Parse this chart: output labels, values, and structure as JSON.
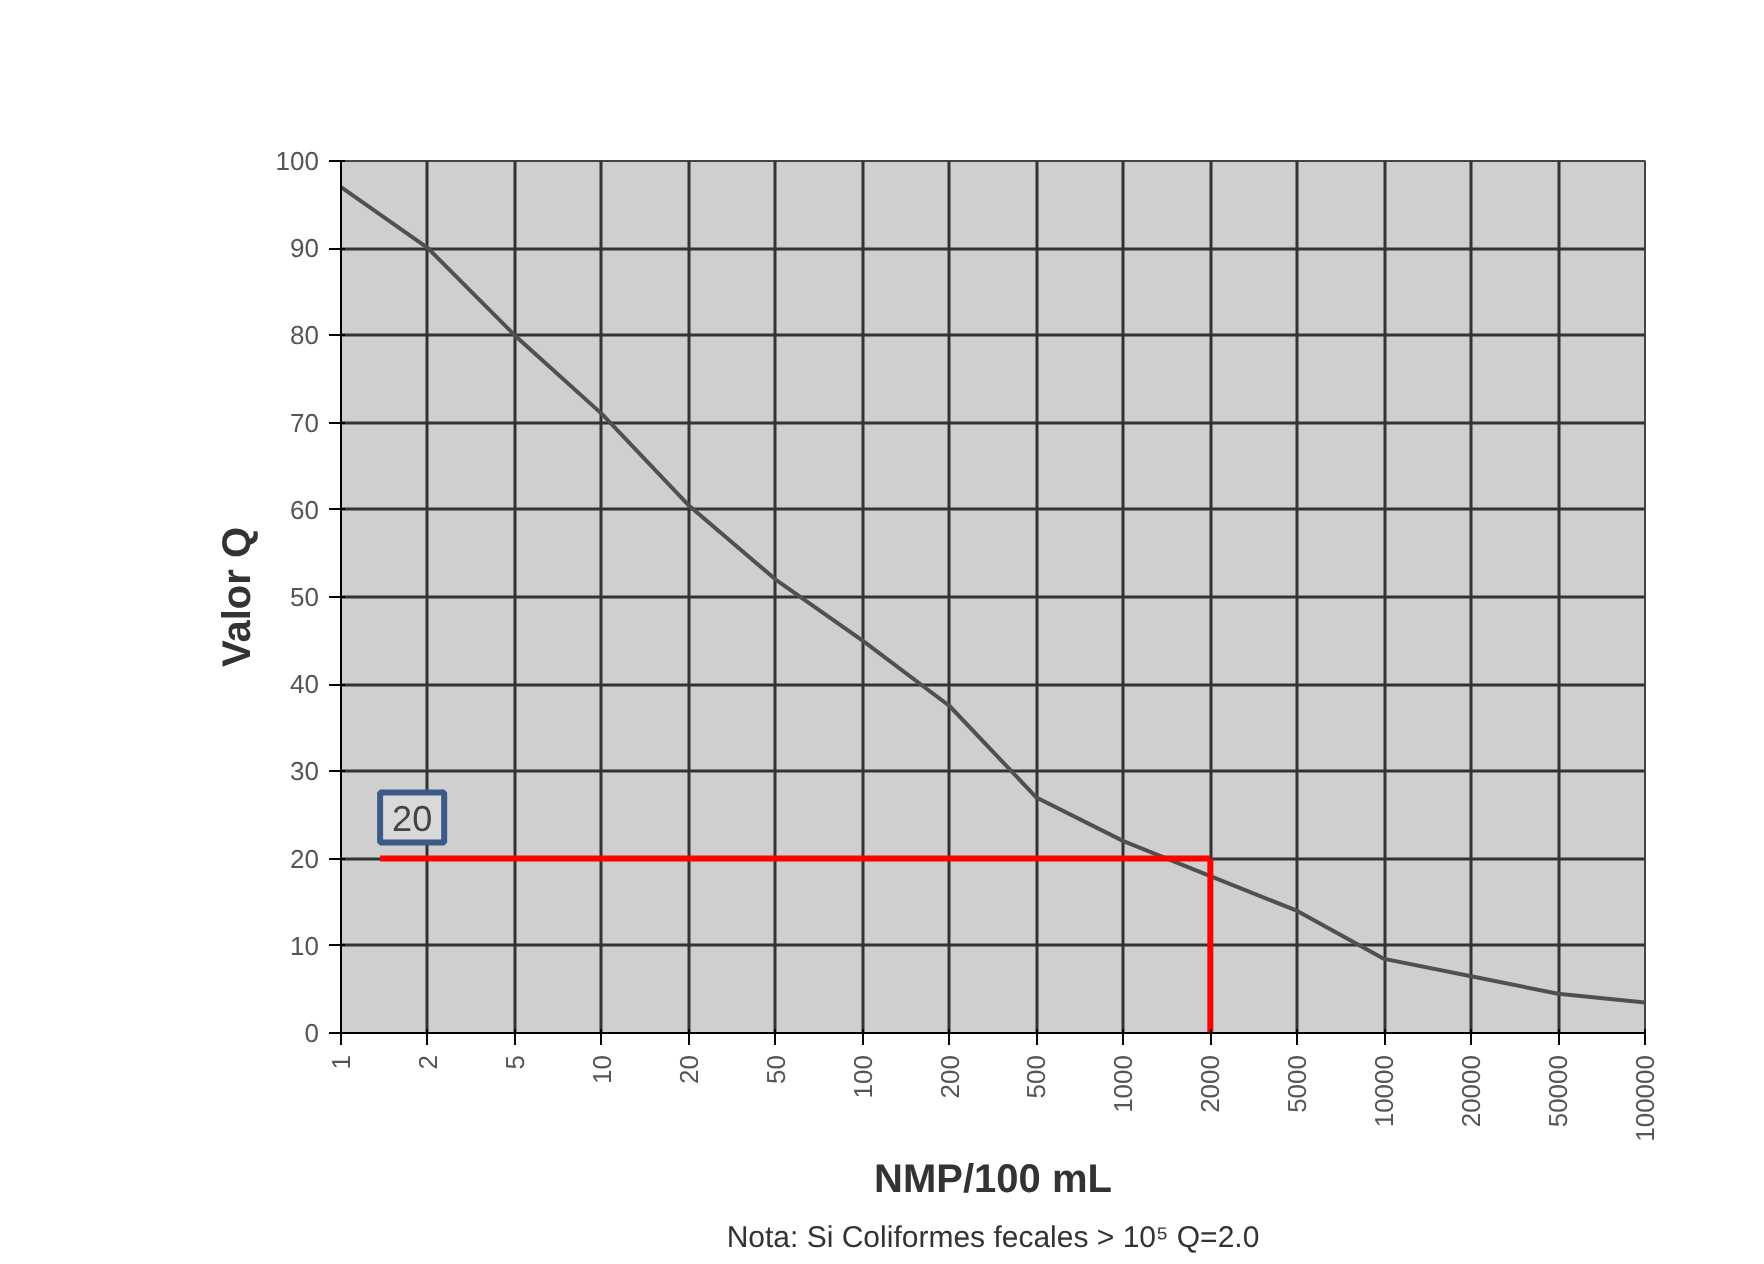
{
  "chart_data": {
    "type": "line",
    "xlabel": "NMP/100 mL",
    "ylabel": "Valor Q",
    "categories": [
      "1",
      "2",
      "5",
      "10",
      "20",
      "50",
      "100",
      "200",
      "500",
      "1000",
      "2000",
      "5000",
      "10000",
      "20000",
      "50000",
      "100000"
    ],
    "series": [
      {
        "color": "#505050",
        "values": [
          97,
          90,
          80,
          71,
          60.5,
          52,
          45,
          37.5,
          27,
          22,
          18,
          14,
          8.5,
          6.5,
          4.5,
          3.5
        ]
      }
    ],
    "ylim": [
      0,
      100
    ],
    "yticks": [
      0,
      10,
      20,
      30,
      40,
      50,
      60,
      70,
      80,
      90,
      100
    ],
    "grid": true,
    "marker": "none",
    "line_style": "solid",
    "ref_lines": [
      {
        "axis": "y",
        "value": 20,
        "label": "20",
        "color": "#ff0000"
      },
      {
        "axis": "x",
        "value": "2000",
        "color": "#ff0000"
      }
    ],
    "annotations": [
      "Nota: Si Coliformes fecales > 10⁵ Q=2.0"
    ]
  }
}
